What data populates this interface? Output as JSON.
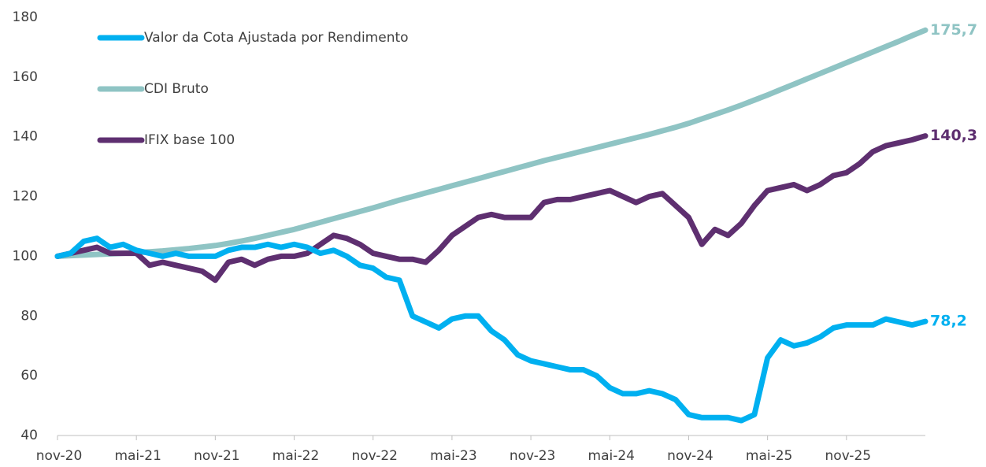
{
  "chart_data": {
    "type": "line",
    "categories": [
      "nov-20",
      null,
      null,
      null,
      null,
      null,
      "mai-21",
      null,
      null,
      null,
      null,
      null,
      "nov-21",
      null,
      null,
      null,
      null,
      null,
      "mai-22",
      null,
      null,
      null,
      null,
      null,
      "nov-22",
      null,
      null,
      null,
      null,
      null,
      "mai-23",
      null,
      null,
      null,
      null,
      null,
      "nov-23",
      null,
      null,
      null,
      null,
      null,
      "mai-24",
      null,
      null,
      null,
      null,
      null,
      "nov-24",
      null,
      null,
      null,
      null,
      null,
      "mai-25",
      null,
      null,
      null,
      null,
      null,
      "nov-25",
      null,
      null,
      null,
      null,
      null,
      null
    ],
    "ylim": [
      40,
      180
    ],
    "yticks": [
      40,
      60,
      80,
      100,
      120,
      140,
      160,
      180
    ],
    "legend": "upper left",
    "series": [
      {
        "name": "Valor da Cota Ajustada por Rendimento",
        "color": "#00b0f0",
        "values": [
          100,
          101,
          105,
          106,
          103,
          104,
          102,
          101,
          100,
          101,
          100,
          100,
          100,
          102,
          103,
          103,
          104,
          103,
          104,
          103,
          101,
          102,
          100,
          97,
          96,
          93,
          92,
          80,
          78,
          76,
          79,
          80,
          80,
          75,
          72,
          67,
          65,
          64,
          63,
          62,
          62,
          60,
          56,
          54,
          54,
          55,
          54,
          52,
          47,
          46,
          46,
          46,
          45,
          47,
          66,
          72,
          70,
          71,
          73,
          76,
          77,
          77,
          77,
          79,
          78,
          77,
          78.2
        ],
        "value_labels": [
          null,
          null,
          null,
          null,
          null,
          null,
          null,
          null,
          null,
          null,
          null,
          null,
          null,
          null,
          null,
          null,
          null,
          null,
          null,
          null,
          null,
          null,
          null,
          null,
          null,
          null,
          null,
          null,
          null,
          null,
          null,
          null,
          null,
          null,
          null,
          null,
          null,
          null,
          null,
          null,
          null,
          null,
          null,
          null,
          null,
          null,
          null,
          null,
          null,
          null,
          null,
          null,
          null,
          null,
          null,
          null,
          null,
          null,
          null,
          null,
          null,
          null,
          null,
          null,
          null,
          null,
          "78,2"
        ]
      },
      {
        "name": "CDI Bruto",
        "color": "#8fc4c4",
        "values": [
          100,
          100.2,
          100.4,
          100.6,
          100.8,
          101,
          101.2,
          101.5,
          101.8,
          102.2,
          102.6,
          103.1,
          103.6,
          104.3,
          105.1,
          106,
          107,
          108,
          109,
          110.2,
          111.4,
          112.6,
          113.8,
          115,
          116.2,
          117.5,
          118.8,
          120,
          121.2,
          122.4,
          123.6,
          124.8,
          126,
          127.2,
          128.4,
          129.6,
          130.8,
          132,
          133.1,
          134.2,
          135.3,
          136.4,
          137.5,
          138.6,
          139.7,
          140.8,
          142,
          143.2,
          144.5,
          146,
          147.5,
          149,
          150.6,
          152.3,
          154,
          155.8,
          157.6,
          159.4,
          161.2,
          163,
          164.8,
          166.6,
          168.4,
          170.2,
          172,
          173.9,
          175.7
        ],
        "value_labels": [
          null,
          null,
          null,
          null,
          null,
          null,
          null,
          null,
          null,
          null,
          null,
          null,
          null,
          null,
          null,
          null,
          null,
          null,
          null,
          null,
          null,
          null,
          null,
          null,
          null,
          null,
          null,
          null,
          null,
          null,
          null,
          null,
          null,
          null,
          null,
          null,
          null,
          null,
          null,
          null,
          null,
          null,
          null,
          null,
          null,
          null,
          null,
          null,
          null,
          null,
          null,
          null,
          null,
          null,
          null,
          null,
          null,
          null,
          null,
          null,
          null,
          null,
          null,
          null,
          null,
          null,
          "175,7"
        ]
      },
      {
        "name": "IFIX  base 100",
        "color": "#5e2f70",
        "values": [
          100,
          101,
          102,
          103,
          101,
          101,
          101,
          97,
          98,
          97,
          96,
          95,
          92,
          98,
          99,
          97,
          99,
          100,
          100,
          101,
          104,
          107,
          106,
          104,
          101,
          100,
          99,
          99,
          98,
          102,
          107,
          110,
          113,
          114,
          113,
          113,
          113,
          118,
          119,
          119,
          120,
          121,
          122,
          120,
          118,
          120,
          121,
          117,
          113,
          104,
          109,
          107,
          111,
          117,
          122,
          123,
          124,
          122,
          124,
          127,
          128,
          131,
          135,
          137,
          138,
          139,
          140.3
        ],
        "value_labels": [
          null,
          null,
          null,
          null,
          null,
          null,
          null,
          null,
          null,
          null,
          null,
          null,
          null,
          null,
          null,
          null,
          null,
          null,
          null,
          null,
          null,
          null,
          null,
          null,
          null,
          null,
          null,
          null,
          null,
          null,
          null,
          null,
          null,
          null,
          null,
          null,
          null,
          null,
          null,
          null,
          null,
          null,
          null,
          null,
          null,
          null,
          null,
          null,
          null,
          null,
          null,
          null,
          null,
          null,
          null,
          null,
          null,
          null,
          null,
          null,
          null,
          null,
          null,
          null,
          null,
          null,
          "140,3"
        ]
      }
    ]
  }
}
